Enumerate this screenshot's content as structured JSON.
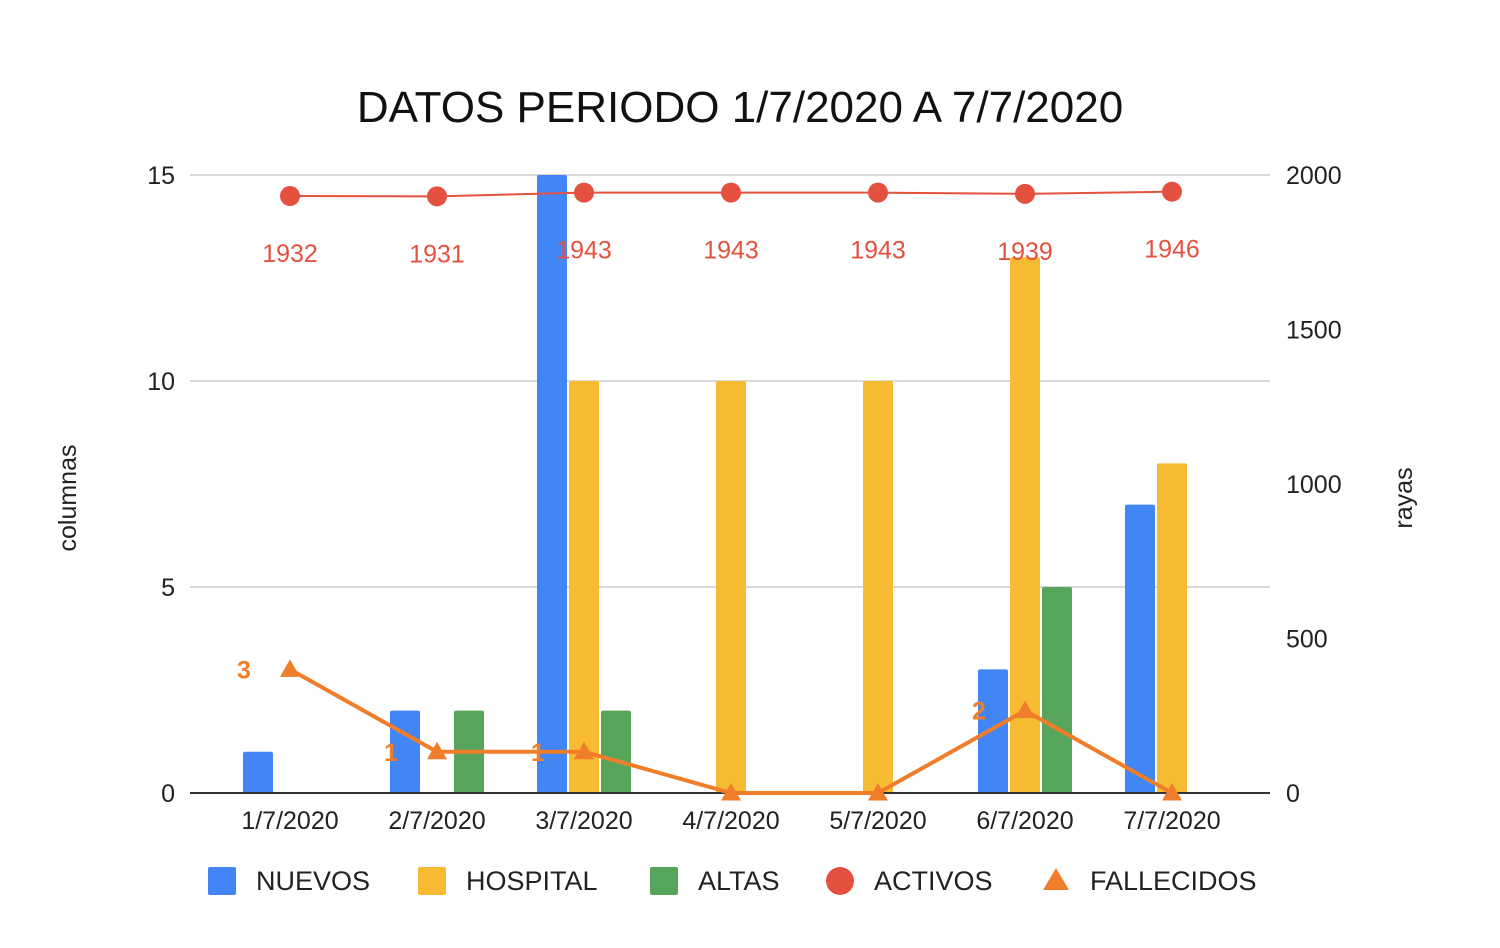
{
  "chart_data": {
    "type": "bar",
    "title": "DATOS PERIODO 1/7/2020 A 7/7/2020",
    "ylabel": "columnas",
    "y2label": "rayas",
    "categories": [
      "1/7/2020",
      "2/7/2020",
      "3/7/2020",
      "4/7/2020",
      "5/7/2020",
      "6/7/2020",
      "7/7/2020"
    ],
    "ylim": [
      0,
      15
    ],
    "yticks": [
      "0",
      "5",
      "10",
      "15"
    ],
    "y2lim": [
      0,
      2000
    ],
    "y2ticks": [
      "0",
      "500",
      "1000",
      "1500",
      "2000"
    ],
    "grid": true,
    "legend_position": "bottom",
    "series": [
      {
        "name": "NUEVOS",
        "type": "bar",
        "axis": "left",
        "color": "#4285f4",
        "values": [
          1,
          2,
          15,
          0,
          0,
          3,
          7
        ]
      },
      {
        "name": "HOSPITAL",
        "type": "bar",
        "axis": "left",
        "color": "#f6bb33",
        "values": [
          0,
          0,
          10,
          10,
          10,
          13,
          8
        ]
      },
      {
        "name": "ALTAS",
        "type": "bar",
        "axis": "left",
        "color": "#57a55a",
        "values": [
          0,
          2,
          2,
          0,
          0,
          5,
          0
        ]
      },
      {
        "name": "ACTIVOS",
        "type": "line",
        "marker": "circle",
        "axis": "right",
        "color": "#e4513f",
        "values": [
          1932,
          1931,
          1943,
          1943,
          1943,
          1939,
          1946
        ],
        "labels": [
          "1932",
          "1931",
          "1943",
          "1943",
          "1943",
          "1939",
          "1946"
        ]
      },
      {
        "name": "FALLECIDOS",
        "type": "line",
        "marker": "triangle",
        "axis": "left",
        "color": "#f07d2a",
        "values": [
          3,
          1,
          1,
          0,
          0,
          2,
          0
        ],
        "labels": [
          "3",
          "1",
          "1",
          "",
          "",
          "2",
          ""
        ]
      }
    ]
  }
}
